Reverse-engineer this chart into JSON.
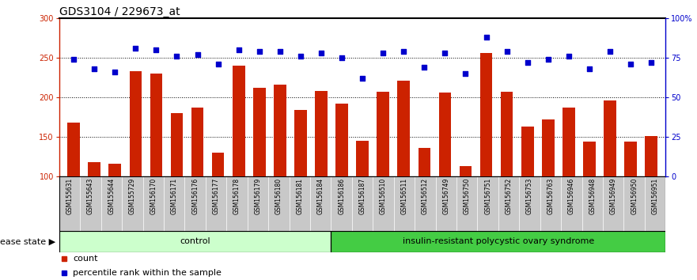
{
  "title": "GDS3104 / 229673_at",
  "samples": [
    "GSM155631",
    "GSM155643",
    "GSM155644",
    "GSM155729",
    "GSM156170",
    "GSM156171",
    "GSM156176",
    "GSM156177",
    "GSM156178",
    "GSM156179",
    "GSM156180",
    "GSM156181",
    "GSM156184",
    "GSM156186",
    "GSM156187",
    "GSM156510",
    "GSM156511",
    "GSM156512",
    "GSM156749",
    "GSM156750",
    "GSM156751",
    "GSM156752",
    "GSM156753",
    "GSM156763",
    "GSM156946",
    "GSM156948",
    "GSM156949",
    "GSM156950",
    "GSM156951"
  ],
  "counts": [
    168,
    118,
    116,
    233,
    230,
    180,
    187,
    130,
    240,
    212,
    216,
    184,
    208,
    192,
    145,
    207,
    221,
    136,
    206,
    113,
    256,
    207,
    163,
    172,
    187,
    144,
    196,
    144,
    151
  ],
  "percentile": [
    74,
    68,
    66,
    81,
    80,
    76,
    77,
    71,
    80,
    79,
    79,
    76,
    78,
    75,
    62,
    78,
    79,
    69,
    78,
    65,
    88,
    79,
    72,
    74,
    76,
    68,
    79,
    71,
    72
  ],
  "n_control": 13,
  "control_label": "control",
  "disease_label": "insulin-resistant polycystic ovary syndrome",
  "bar_color": "#cc2200",
  "marker_color": "#0000cc",
  "control_bg": "#ccffcc",
  "disease_bg": "#44cc44",
  "label_bg": "#c8c8c8",
  "left_ylim": [
    100,
    300
  ],
  "left_yticks": [
    100,
    150,
    200,
    250,
    300
  ],
  "right_ylim": [
    0,
    100
  ],
  "right_yticks": [
    0,
    25,
    50,
    75,
    100
  ],
  "right_yticklabels": [
    "0",
    "25",
    "50",
    "75",
    "100%"
  ],
  "hgrid_values": [
    150,
    200,
    250
  ],
  "title_fontsize": 10,
  "tick_fontsize": 7,
  "label_fontsize": 8,
  "legend_fontsize": 8,
  "sample_label_fontsize": 5.5
}
